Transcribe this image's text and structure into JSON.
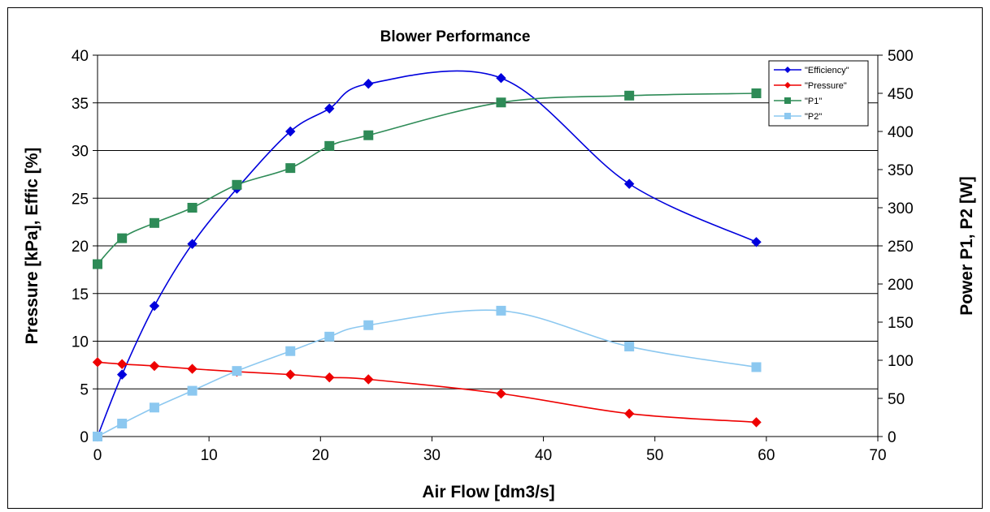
{
  "chart_data": {
    "type": "line",
    "title": "Blower Performance",
    "xlabel": "Air Flow [dm3/s]",
    "ylabel": "Pressure [kPa], Effic [%]",
    "y2label": "Power P1, P2 [W]",
    "xlim": [
      0,
      70
    ],
    "ylim": [
      0,
      40
    ],
    "y2lim": [
      0,
      500
    ],
    "xticks": [
      0,
      10,
      20,
      30,
      40,
      50,
      60,
      70
    ],
    "yticks": [
      0,
      5,
      10,
      15,
      20,
      25,
      30,
      35,
      40
    ],
    "y2ticks": [
      0,
      50,
      100,
      150,
      200,
      250,
      300,
      350,
      400,
      450,
      500
    ],
    "grid": "horizontal",
    "legend_position": "top-right",
    "series": [
      {
        "name": "\"Efficiency\"",
        "axis": "left",
        "color": "#0000dd",
        "marker": "diamond",
        "x": [
          0,
          2.2,
          5.1,
          8.5,
          12.5,
          17.3,
          20.8,
          24.3,
          36.2,
          47.7,
          59.1
        ],
        "y": [
          0,
          6.5,
          13.7,
          20.2,
          26,
          32,
          34.4,
          37,
          37.6,
          26.5,
          20.4
        ]
      },
      {
        "name": "\"Pressure\"",
        "axis": "left",
        "color": "#ee0000",
        "marker": "diamond",
        "x": [
          0,
          2.2,
          5.1,
          8.5,
          12.5,
          17.3,
          20.8,
          24.3,
          36.2,
          47.7,
          59.1
        ],
        "y": [
          7.8,
          7.6,
          7.4,
          7.1,
          6.8,
          6.5,
          6.2,
          6.0,
          4.5,
          2.4,
          1.5
        ]
      },
      {
        "name": "\"P1\"",
        "axis": "right",
        "color": "#2e8b57",
        "marker": "square",
        "x": [
          0,
          2.2,
          5.1,
          8.5,
          12.5,
          17.3,
          20.8,
          24.3,
          36.2,
          47.7,
          59.1
        ],
        "y": [
          226,
          260,
          280,
          300,
          330,
          352,
          381,
          395,
          438,
          447,
          450
        ]
      },
      {
        "name": "\"P2\"",
        "axis": "right",
        "color": "#8cc8f0",
        "marker": "square",
        "x": [
          0,
          2.2,
          5.1,
          8.5,
          12.5,
          17.3,
          20.8,
          24.3,
          36.2,
          47.7,
          59.1
        ],
        "y": [
          0,
          17,
          38,
          60,
          86,
          112,
          131,
          146,
          165,
          118,
          91
        ]
      }
    ]
  }
}
